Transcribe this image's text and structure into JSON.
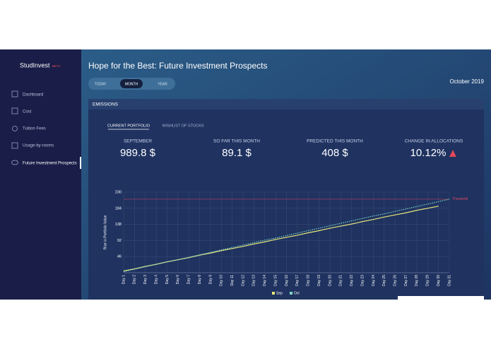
{
  "sidebar": {
    "brand": "StudInvest",
    "badge": "BETA",
    "nav": [
      "Dashboard",
      "Cost",
      "Tuition Fees",
      "Usage-by-rooms",
      "Future Investment Prospects"
    ]
  },
  "header": {
    "title": "Hope for the Best: Future Investment Prospects",
    "tabs": [
      "TODAY",
      "MONTH",
      "YEAR"
    ],
    "date": "October 2019"
  },
  "panel": {
    "title": "EMISSIONS",
    "subtabs": [
      "CURRENT PORTFOLIO",
      "WISHLIST OF STOCKS"
    ],
    "stats": [
      {
        "label": "SEPTEMBER",
        "value": "989.8 $"
      },
      {
        "label": "SO FAR THIS MONTH",
        "value": "89.1 $"
      },
      {
        "label": "PREDICTED THIS MONTH",
        "value": "408 $"
      },
      {
        "label": "CHANGE IN ALLOCATIONS",
        "value": "10.12%"
      }
    ]
  },
  "chart_data": {
    "type": "line",
    "ylabel": "Rise in Portfolio Value",
    "categories": [
      "Day 1",
      "Day 2",
      "Day 3",
      "Day 4",
      "Day 5",
      "Day 6",
      "Day 7",
      "Day 8",
      "Day 9",
      "Day 10",
      "Day 11",
      "Day 12",
      "Day 13",
      "Day 14",
      "Day 15",
      "Day 16",
      "Day 17",
      "Day 18",
      "Day 19",
      "Day 20",
      "Day 21",
      "Day 22",
      "Day 23",
      "Day 24",
      "Day 25",
      "Day 26",
      "Day 27",
      "Day 28",
      "Day 29",
      "Day 30",
      "Day 31"
    ],
    "series": [
      {
        "name": "Sep",
        "color": "#e6e67a",
        "dashed": false,
        "values": [
          5,
          11,
          18,
          24,
          31,
          37,
          43,
          50,
          56,
          63,
          69,
          75,
          82,
          88,
          95,
          101,
          107,
          114,
          120,
          127,
          133,
          139,
          146,
          152,
          159,
          165,
          171,
          178,
          184,
          190,
          null
        ]
      },
      {
        "name": "Oct",
        "color": "#7fd6c8",
        "dashed": true,
        "values": [
          3,
          10,
          17,
          24,
          31,
          37,
          44,
          51,
          58,
          65,
          72,
          79,
          86,
          93,
          99,
          106,
          113,
          120,
          127,
          134,
          141,
          148,
          155,
          162,
          168,
          175,
          182,
          189,
          196,
          203,
          210
        ]
      }
    ],
    "threshold": {
      "value": 210,
      "label": "Threshold",
      "color": "#e0485a"
    },
    "ylim": [
      0,
      230
    ],
    "yticks": [
      46,
      92,
      138,
      184,
      230
    ],
    "grid": true
  }
}
